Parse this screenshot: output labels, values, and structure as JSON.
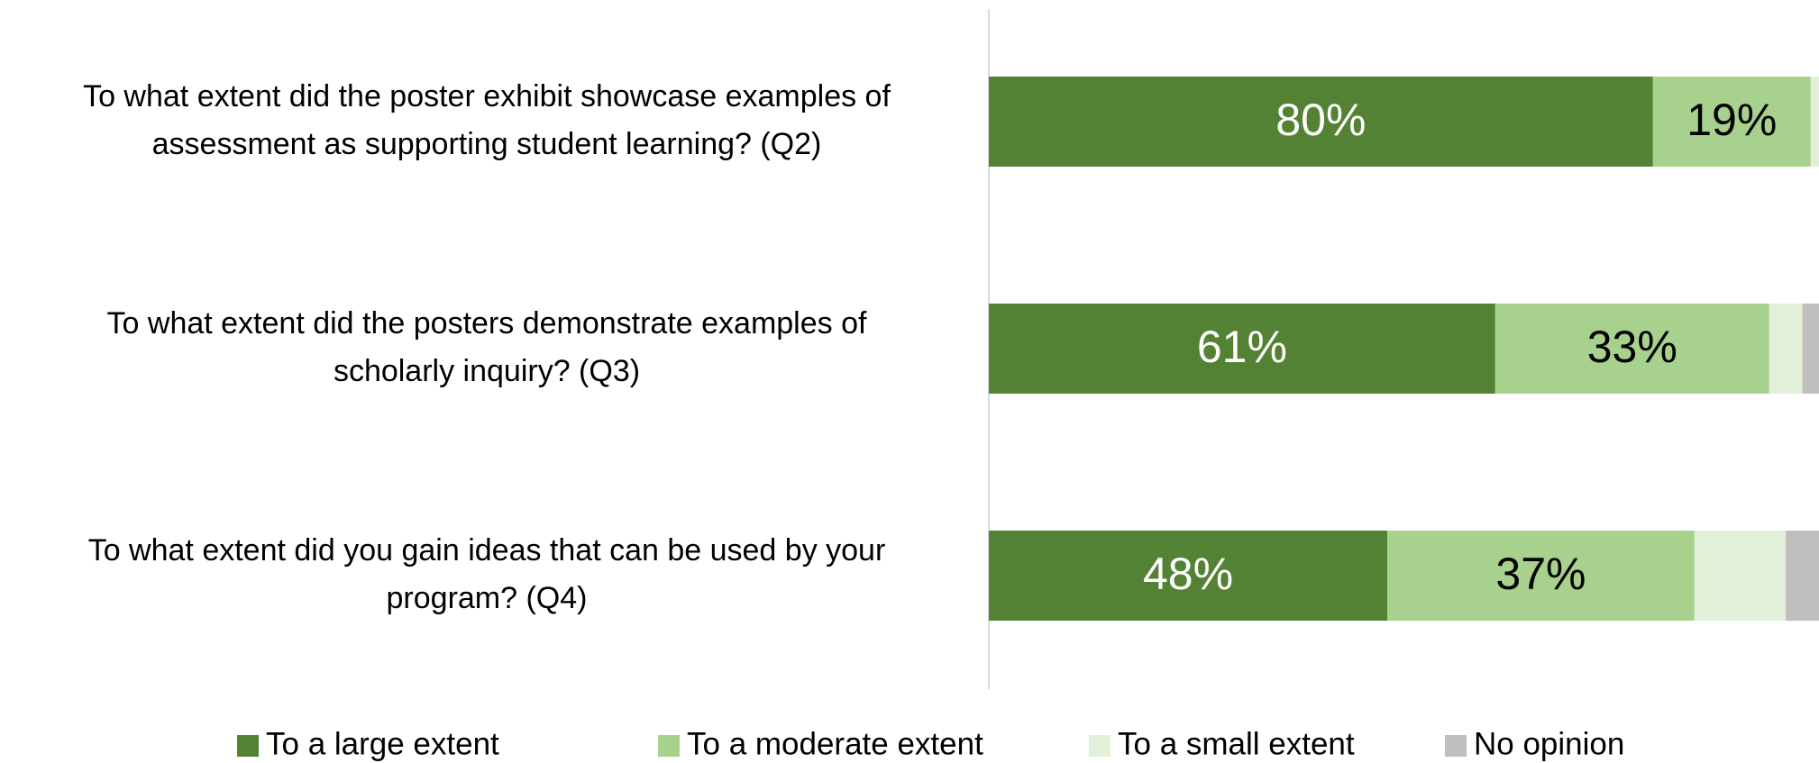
{
  "chart_data": {
    "type": "stacked_barh",
    "categories": [
      [
        "To what extent did the poster exhibit showcase examples of",
        "assessment as supporting student learning? (Q2)"
      ],
      [
        "To what extent did the posters demonstrate examples of",
        "scholarly inquiry? (Q3)"
      ],
      [
        "To what extent did you gain ideas that can be used by your",
        "program? (Q4)"
      ]
    ],
    "series": [
      {
        "name": "To a large extent",
        "color": "#548235",
        "label_color": "#ffffff",
        "values": [
          80,
          61,
          48
        ],
        "value_labels": [
          "80%",
          "61%",
          "48%"
        ]
      },
      {
        "name": "To a moderate extent",
        "color": "#a9d18e",
        "label_color": "#000000",
        "values": [
          19,
          33,
          37
        ],
        "value_labels": [
          "19%",
          "33%",
          "37%"
        ]
      },
      {
        "name": "To a small extent",
        "color": "#e2f0d9",
        "values": [
          1,
          4,
          11
        ]
      },
      {
        "name": "No opinion",
        "color": "#bfbfbf",
        "values": [
          0,
          2,
          4
        ]
      }
    ],
    "xlim": [
      0,
      100
    ],
    "legend": "bottom"
  }
}
